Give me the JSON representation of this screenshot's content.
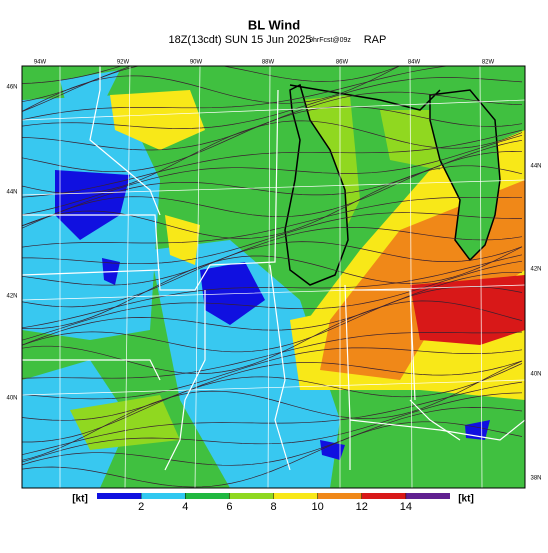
{
  "title": "BL Wind",
  "subtitle": "18Z(13cdt) SUN 15 Jun 2025",
  "forecast": "9hrFcst@09z",
  "model": "RAP",
  "lon_labels": [
    "94W",
    "92W",
    "90W",
    "88W",
    "86W",
    "84W",
    "82W"
  ],
  "lat_labels_left": [
    "46N",
    "44N",
    "42N",
    "40N"
  ],
  "lat_labels_right": [
    "44N",
    "42N",
    "40N",
    "38N"
  ],
  "colorbar": {
    "unit": "[kt]",
    "lim": [
      0,
      16
    ],
    "ticks": [
      2,
      4,
      6,
      8,
      10,
      12,
      14
    ],
    "bins": [
      0,
      2,
      4,
      6,
      8,
      10,
      12,
      14,
      16
    ],
    "colors": [
      "#1010e0",
      "#30c8f0",
      "#20b840",
      "#90d820",
      "#f8e818",
      "#f08818",
      "#d81818",
      "#602090"
    ]
  }
}
